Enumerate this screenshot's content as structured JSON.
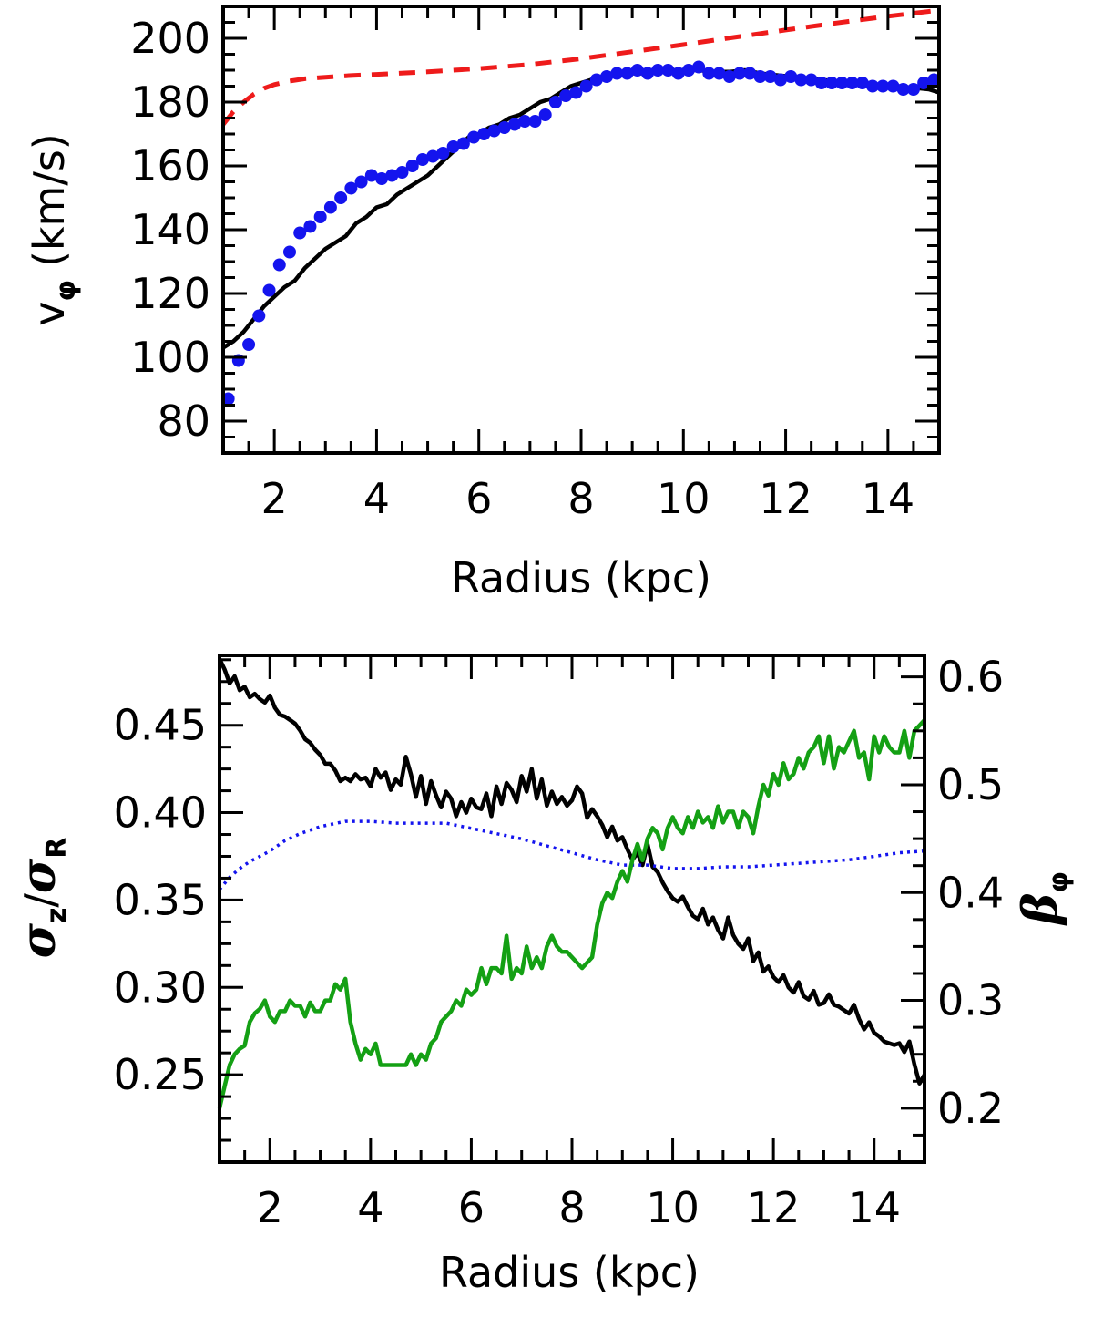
{
  "colors": {
    "black": "#000000",
    "blue": "#1414ee",
    "red": "#ee1b1b",
    "green": "#14a014"
  },
  "chart_data": [
    {
      "type": "line",
      "xlabel": "Radius (kpc)",
      "ylabel_prefix": "v",
      "ylabel_symbol": "φ",
      "ylabel_unit": "(km/s)",
      "xlim": [
        1.0,
        15.0
      ],
      "ylim": [
        70,
        210
      ],
      "xticks": [
        2,
        4,
        6,
        8,
        10,
        12,
        14
      ],
      "xtick_labels": [
        "2",
        "4",
        "6",
        "8",
        "10",
        "12",
        "14"
      ],
      "yticks": [
        80,
        100,
        120,
        140,
        160,
        180,
        200
      ],
      "ytick_labels": [
        "80",
        "100",
        "120",
        "140",
        "160",
        "180",
        "200"
      ],
      "series": [
        {
          "style": "dashed",
          "color": "#ee1b1b",
          "x": [
            1.0,
            1.2,
            1.4,
            1.6,
            1.8,
            2.0,
            2.3,
            2.6,
            3.0,
            3.5,
            4.0,
            5.0,
            6.0,
            7.0,
            8.0,
            9.0,
            10.0,
            11.0,
            12.0,
            13.0,
            14.0,
            15.0
          ],
          "y": [
            173,
            177,
            180,
            182.5,
            184.3,
            185.5,
            186.6,
            187.3,
            187.8,
            188.3,
            188.7,
            189.5,
            190.5,
            191.8,
            193.6,
            195.8,
            198.0,
            200.3,
            202.6,
            204.8,
            206.9,
            208.8
          ]
        },
        {
          "style": "solid",
          "color": "#000000",
          "x": [
            1.0,
            1.2,
            1.4,
            1.6,
            1.8,
            2.0,
            2.2,
            2.4,
            2.6,
            2.8,
            3.0,
            3.2,
            3.4,
            3.6,
            3.8,
            4.0,
            4.2,
            4.4,
            4.6,
            4.8,
            5.0,
            5.2,
            5.4,
            5.6,
            5.8,
            6.0,
            6.2,
            6.4,
            6.6,
            6.8,
            7.0,
            7.2,
            7.4,
            7.6,
            7.8,
            8.0,
            8.2,
            8.4,
            8.6,
            8.8,
            9.0,
            9.2,
            9.4,
            9.6,
            9.8,
            10.0,
            10.3,
            10.6,
            10.9,
            11.2,
            11.5,
            11.8,
            12.1,
            12.4,
            12.7,
            13.0,
            13.3,
            13.6,
            13.9,
            14.2,
            14.5,
            14.8,
            15.0
          ],
          "y": [
            103,
            105,
            108,
            112,
            116,
            119,
            122,
            124,
            128,
            131,
            134,
            136,
            138,
            142,
            144,
            147,
            148,
            151,
            153,
            155,
            157,
            160,
            163,
            166,
            169,
            170,
            172,
            173,
            175,
            176,
            178,
            180,
            181,
            183,
            185,
            186,
            187,
            188,
            188.5,
            189,
            189,
            189,
            189.5,
            189.5,
            190,
            190,
            190,
            189.5,
            189.5,
            190,
            189,
            188.5,
            188,
            187.5,
            187,
            186.5,
            186,
            185.5,
            185.5,
            185,
            184.5,
            184,
            183
          ]
        },
        {
          "style": "dots",
          "color": "#1414ee",
          "x": [
            1.1,
            1.3,
            1.5,
            1.7,
            1.9,
            2.1,
            2.3,
            2.5,
            2.7,
            2.9,
            3.1,
            3.3,
            3.5,
            3.7,
            3.9,
            4.1,
            4.3,
            4.5,
            4.7,
            4.9,
            5.1,
            5.3,
            5.5,
            5.7,
            5.9,
            6.1,
            6.3,
            6.5,
            6.7,
            6.9,
            7.1,
            7.3,
            7.5,
            7.7,
            7.9,
            8.1,
            8.3,
            8.5,
            8.7,
            8.9,
            9.1,
            9.3,
            9.5,
            9.7,
            9.9,
            10.1,
            10.3,
            10.5,
            10.7,
            10.9,
            11.1,
            11.3,
            11.5,
            11.7,
            11.9,
            12.1,
            12.3,
            12.5,
            12.7,
            12.9,
            13.1,
            13.3,
            13.5,
            13.7,
            13.9,
            14.1,
            14.3,
            14.5,
            14.7,
            14.9
          ],
          "y": [
            87,
            99,
            104,
            113,
            121,
            129,
            133,
            139,
            141,
            144,
            147,
            150,
            153,
            155,
            157,
            156,
            157,
            158,
            160,
            162,
            163,
            164,
            166,
            167,
            169,
            170,
            171,
            172,
            173,
            174,
            174,
            176,
            180,
            182,
            183,
            185,
            187,
            188,
            189,
            189,
            190,
            189,
            190,
            190,
            189,
            190,
            191,
            189,
            189,
            188,
            189,
            189,
            188,
            188,
            187,
            188,
            187,
            187,
            186,
            186,
            186,
            186,
            186,
            185,
            185,
            185,
            184,
            184,
            186,
            187
          ]
        }
      ]
    },
    {
      "type": "line",
      "xlabel": "Radius (kpc)",
      "ylabel_left_sym1": "σ",
      "ylabel_left_sub1": "z",
      "ylabel_left_sep": "/",
      "ylabel_left_sym2": "σ",
      "ylabel_left_sub2": "R",
      "ylabel_right_sym": "β",
      "ylabel_right_sub": "φ",
      "xlim": [
        1.0,
        15.0
      ],
      "ylim": [
        0.2,
        0.49
      ],
      "ylim_right": [
        0.15,
        0.62
      ],
      "xticks": [
        2,
        4,
        6,
        8,
        10,
        12,
        14
      ],
      "xtick_labels": [
        "2",
        "4",
        "6",
        "8",
        "10",
        "12",
        "14"
      ],
      "yticks": [
        0.25,
        0.3,
        0.35,
        0.4,
        0.45
      ],
      "ytick_labels": [
        "0.25",
        "0.30",
        "0.35",
        "0.40",
        "0.45"
      ],
      "yticks_right": [
        0.2,
        0.3,
        0.4,
        0.5,
        0.6
      ],
      "ytick_labels_right": [
        "0.2",
        "0.3",
        "0.4",
        "0.5",
        "0.6"
      ],
      "series": [
        {
          "style": "solid",
          "color": "#000000",
          "axis": "left",
          "x": [
            1.0,
            1.1,
            1.2,
            1.3,
            1.4,
            1.5,
            1.6,
            1.7,
            1.8,
            1.9,
            2.0,
            2.1,
            2.2,
            2.3,
            2.4,
            2.5,
            2.6,
            2.7,
            2.8,
            2.9,
            3.0,
            3.1,
            3.2,
            3.3,
            3.4,
            3.5,
            3.6,
            3.7,
            3.8,
            3.9,
            4.0,
            4.1,
            4.2,
            4.3,
            4.4,
            4.5,
            4.6,
            4.7,
            4.8,
            4.9,
            5.0,
            5.1,
            5.2,
            5.3,
            5.4,
            5.5,
            5.6,
            5.7,
            5.8,
            5.9,
            6.0,
            6.1,
            6.2,
            6.3,
            6.4,
            6.5,
            6.6,
            6.7,
            6.8,
            6.9,
            7.0,
            7.1,
            7.2,
            7.3,
            7.4,
            7.5,
            7.6,
            7.7,
            7.8,
            7.9,
            8.0,
            8.1,
            8.2,
            8.3,
            8.4,
            8.5,
            8.6,
            8.7,
            8.8,
            8.9,
            9.0,
            9.1,
            9.2,
            9.3,
            9.4,
            9.5,
            9.6,
            9.7,
            9.8,
            9.9,
            10.0,
            10.1,
            10.2,
            10.3,
            10.4,
            10.5,
            10.6,
            10.7,
            10.8,
            10.9,
            11.0,
            11.1,
            11.2,
            11.3,
            11.4,
            11.5,
            11.6,
            11.7,
            11.8,
            11.9,
            12.0,
            12.1,
            12.2,
            12.3,
            12.4,
            12.5,
            12.6,
            12.7,
            12.8,
            12.9,
            13.0,
            13.1,
            13.2,
            13.3,
            13.4,
            13.5,
            13.6,
            13.7,
            13.8,
            13.9,
            14.0,
            14.1,
            14.2,
            14.3,
            14.4,
            14.5,
            14.6,
            14.7,
            14.8,
            14.9,
            15.0
          ],
          "y": [
            0.488,
            0.482,
            0.474,
            0.478,
            0.47,
            0.472,
            0.466,
            0.468,
            0.465,
            0.463,
            0.467,
            0.46,
            0.456,
            0.455,
            0.453,
            0.451,
            0.447,
            0.442,
            0.44,
            0.436,
            0.433,
            0.428,
            0.428,
            0.424,
            0.418,
            0.42,
            0.418,
            0.422,
            0.419,
            0.42,
            0.415,
            0.425,
            0.42,
            0.423,
            0.413,
            0.419,
            0.416,
            0.432,
            0.422,
            0.409,
            0.421,
            0.405,
            0.418,
            0.41,
            0.403,
            0.412,
            0.408,
            0.398,
            0.406,
            0.4,
            0.408,
            0.403,
            0.402,
            0.411,
            0.398,
            0.415,
            0.405,
            0.417,
            0.413,
            0.406,
            0.421,
            0.412,
            0.425,
            0.408,
            0.419,
            0.404,
            0.412,
            0.405,
            0.409,
            0.404,
            0.407,
            0.415,
            0.411,
            0.397,
            0.402,
            0.398,
            0.393,
            0.386,
            0.392,
            0.384,
            0.386,
            0.379,
            0.373,
            0.377,
            0.37,
            0.382,
            0.369,
            0.366,
            0.36,
            0.355,
            0.351,
            0.349,
            0.352,
            0.346,
            0.341,
            0.339,
            0.345,
            0.336,
            0.34,
            0.333,
            0.328,
            0.34,
            0.33,
            0.325,
            0.322,
            0.328,
            0.315,
            0.32,
            0.309,
            0.312,
            0.306,
            0.303,
            0.307,
            0.3,
            0.297,
            0.303,
            0.295,
            0.293,
            0.298,
            0.29,
            0.291,
            0.296,
            0.29,
            0.289,
            0.287,
            0.285,
            0.29,
            0.282,
            0.276,
            0.28,
            0.274,
            0.272,
            0.269,
            0.268,
            0.267,
            0.268,
            0.263,
            0.269,
            0.256,
            0.245,
            0.25
          ]
        },
        {
          "style": "dotted",
          "color": "#1414ee",
          "axis": "left",
          "x": [
            1.0,
            1.2,
            1.4,
            1.6,
            1.8,
            2.0,
            2.3,
            2.6,
            3.0,
            3.5,
            4.0,
            4.5,
            5.0,
            5.5,
            6.0,
            6.5,
            7.0,
            7.5,
            8.0,
            8.5,
            9.0,
            9.5,
            10.0,
            10.5,
            11.0,
            11.5,
            12.0,
            12.5,
            13.0,
            13.5,
            14.0,
            14.5,
            15.0
          ],
          "y": [
            0.356,
            0.363,
            0.368,
            0.372,
            0.375,
            0.378,
            0.384,
            0.388,
            0.392,
            0.395,
            0.395,
            0.394,
            0.394,
            0.394,
            0.391,
            0.388,
            0.385,
            0.381,
            0.377,
            0.373,
            0.37,
            0.37,
            0.368,
            0.368,
            0.369,
            0.369,
            0.37,
            0.371,
            0.372,
            0.373,
            0.375,
            0.377,
            0.378
          ]
        },
        {
          "style": "solid",
          "color": "#14a014",
          "axis": "right",
          "x": [
            1.0,
            1.1,
            1.2,
            1.3,
            1.4,
            1.5,
            1.6,
            1.7,
            1.8,
            1.9,
            2.0,
            2.1,
            2.2,
            2.3,
            2.4,
            2.5,
            2.6,
            2.7,
            2.8,
            2.9,
            3.0,
            3.1,
            3.2,
            3.3,
            3.4,
            3.5,
            3.6,
            3.7,
            3.8,
            3.9,
            4.0,
            4.1,
            4.2,
            4.3,
            4.4,
            4.5,
            4.6,
            4.7,
            4.8,
            4.9,
            5.0,
            5.1,
            5.2,
            5.3,
            5.4,
            5.5,
            5.6,
            5.7,
            5.8,
            5.9,
            6.0,
            6.1,
            6.2,
            6.3,
            6.4,
            6.5,
            6.6,
            6.7,
            6.8,
            6.9,
            7.0,
            7.1,
            7.2,
            7.3,
            7.4,
            7.5,
            7.6,
            7.7,
            7.8,
            7.9,
            8.0,
            8.1,
            8.2,
            8.3,
            8.4,
            8.5,
            8.6,
            8.7,
            8.8,
            8.9,
            9.0,
            9.1,
            9.2,
            9.3,
            9.4,
            9.5,
            9.6,
            9.7,
            9.8,
            9.9,
            10.0,
            10.1,
            10.2,
            10.3,
            10.4,
            10.5,
            10.6,
            10.7,
            10.8,
            10.9,
            11.0,
            11.1,
            11.2,
            11.3,
            11.4,
            11.5,
            11.6,
            11.7,
            11.8,
            11.9,
            12.0,
            12.1,
            12.2,
            12.3,
            12.4,
            12.5,
            12.6,
            12.7,
            12.8,
            12.9,
            13.0,
            13.1,
            13.2,
            13.3,
            13.4,
            13.5,
            13.6,
            13.7,
            13.8,
            13.9,
            14.0,
            14.1,
            14.2,
            14.3,
            14.4,
            14.5,
            14.6,
            14.7,
            14.8,
            14.9,
            15.0
          ],
          "y": [
            0.2,
            0.22,
            0.24,
            0.25,
            0.255,
            0.258,
            0.28,
            0.288,
            0.292,
            0.3,
            0.285,
            0.28,
            0.29,
            0.29,
            0.3,
            0.295,
            0.295,
            0.285,
            0.298,
            0.29,
            0.29,
            0.3,
            0.3,
            0.315,
            0.31,
            0.32,
            0.28,
            0.26,
            0.245,
            0.255,
            0.25,
            0.26,
            0.24,
            0.24,
            0.24,
            0.24,
            0.24,
            0.24,
            0.25,
            0.24,
            0.25,
            0.245,
            0.26,
            0.265,
            0.28,
            0.285,
            0.29,
            0.3,
            0.295,
            0.31,
            0.305,
            0.31,
            0.33,
            0.315,
            0.33,
            0.33,
            0.325,
            0.36,
            0.32,
            0.33,
            0.325,
            0.35,
            0.33,
            0.34,
            0.33,
            0.35,
            0.36,
            0.35,
            0.345,
            0.345,
            0.34,
            0.335,
            0.33,
            0.335,
            0.34,
            0.37,
            0.39,
            0.4,
            0.395,
            0.41,
            0.42,
            0.41,
            0.43,
            0.445,
            0.43,
            0.45,
            0.46,
            0.455,
            0.44,
            0.46,
            0.47,
            0.46,
            0.455,
            0.47,
            0.46,
            0.475,
            0.465,
            0.47,
            0.46,
            0.48,
            0.465,
            0.475,
            0.475,
            0.46,
            0.475,
            0.47,
            0.455,
            0.48,
            0.5,
            0.49,
            0.51,
            0.5,
            0.52,
            0.505,
            0.51,
            0.525,
            0.515,
            0.53,
            0.535,
            0.545,
            0.52,
            0.545,
            0.515,
            0.535,
            0.53,
            0.54,
            0.55,
            0.525,
            0.53,
            0.505,
            0.545,
            0.53,
            0.545,
            0.535,
            0.53,
            0.53,
            0.55,
            0.525,
            0.55,
            0.555,
            0.56
          ]
        }
      ]
    }
  ]
}
